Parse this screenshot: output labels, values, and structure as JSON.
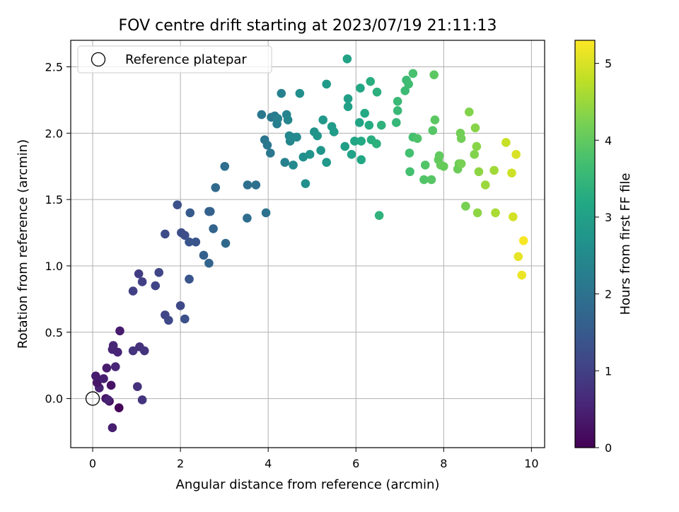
{
  "chart_data": {
    "type": "scatter",
    "title": "FOV centre drift starting at 2023/07/19 21:11:13",
    "xlabel": "Angular distance from reference (arcmin)",
    "ylabel": "Rotation from reference (arcmin)",
    "xlim": [
      -0.5,
      10.3
    ],
    "ylim": [
      -0.37,
      2.7
    ],
    "xticks": [
      "0",
      "2",
      "4",
      "6",
      "8",
      "10"
    ],
    "yticks": [
      "0.0",
      "0.5",
      "1.0",
      "1.5",
      "2.0",
      "2.5"
    ],
    "grid": true,
    "legend": {
      "position": "top-left",
      "label": "Reference platepar"
    },
    "reference_point": {
      "x": 0,
      "y": 0
    },
    "colorbar": {
      "label": "Hours from first FF file",
      "range": [
        0,
        5.3
      ],
      "ticks": [
        "0",
        "1",
        "2",
        "3",
        "4",
        "5"
      ],
      "colormap": "viridis"
    },
    "points": [
      {
        "x": 0.6,
        "y": -0.07,
        "h": 0.05
      },
      {
        "x": 0.45,
        "y": -0.22,
        "h": 0.45
      },
      {
        "x": 0.38,
        "y": -0.02,
        "h": 0.2
      },
      {
        "x": 0.3,
        "y": 0.0,
        "h": 0.3
      },
      {
        "x": 0.35,
        "y": -0.01,
        "h": 0.5
      },
      {
        "x": 0.15,
        "y": 0.08,
        "h": 0.5
      },
      {
        "x": 0.1,
        "y": 0.12,
        "h": 0.3
      },
      {
        "x": 0.07,
        "y": 0.17,
        "h": 0.4
      },
      {
        "x": 0.25,
        "y": 0.15,
        "h": 0.45
      },
      {
        "x": 0.42,
        "y": 0.1,
        "h": 0.25
      },
      {
        "x": 0.32,
        "y": 0.23,
        "h": 0.4
      },
      {
        "x": 0.52,
        "y": 0.24,
        "h": 0.55
      },
      {
        "x": 0.45,
        "y": 0.37,
        "h": 0.55
      },
      {
        "x": 0.47,
        "y": 0.4,
        "h": 0.6
      },
      {
        "x": 0.57,
        "y": 0.35,
        "h": 0.55
      },
      {
        "x": 0.62,
        "y": 0.51,
        "h": 0.4
      },
      {
        "x": 0.92,
        "y": 0.36,
        "h": 0.8
      },
      {
        "x": 1.07,
        "y": 0.39,
        "h": 0.75
      },
      {
        "x": 1.18,
        "y": 0.36,
        "h": 0.8
      },
      {
        "x": 1.02,
        "y": 0.09,
        "h": 0.75
      },
      {
        "x": 1.13,
        "y": -0.01,
        "h": 0.8
      },
      {
        "x": 0.92,
        "y": 0.81,
        "h": 1.0
      },
      {
        "x": 1.05,
        "y": 0.94,
        "h": 0.95
      },
      {
        "x": 1.13,
        "y": 0.88,
        "h": 1.0
      },
      {
        "x": 1.43,
        "y": 0.85,
        "h": 1.05
      },
      {
        "x": 1.51,
        "y": 0.95,
        "h": 1.1
      },
      {
        "x": 1.65,
        "y": 0.63,
        "h": 1.1
      },
      {
        "x": 1.73,
        "y": 0.59,
        "h": 1.15
      },
      {
        "x": 2.0,
        "y": 0.7,
        "h": 1.15
      },
      {
        "x": 2.1,
        "y": 0.6,
        "h": 1.3
      },
      {
        "x": 2.2,
        "y": 0.9,
        "h": 1.4
      },
      {
        "x": 1.65,
        "y": 1.24,
        "h": 1.2
      },
      {
        "x": 2.02,
        "y": 1.25,
        "h": 1.25
      },
      {
        "x": 2.1,
        "y": 1.23,
        "h": 1.25
      },
      {
        "x": 2.2,
        "y": 1.18,
        "h": 1.4
      },
      {
        "x": 2.35,
        "y": 1.18,
        "h": 1.4
      },
      {
        "x": 1.93,
        "y": 1.46,
        "h": 1.3
      },
      {
        "x": 2.22,
        "y": 1.4,
        "h": 1.5
      },
      {
        "x": 2.53,
        "y": 1.08,
        "h": 1.6
      },
      {
        "x": 2.65,
        "y": 1.41,
        "h": 1.6
      },
      {
        "x": 2.68,
        "y": 1.41,
        "h": 1.65
      },
      {
        "x": 2.75,
        "y": 1.28,
        "h": 1.7
      },
      {
        "x": 2.65,
        "y": 1.02,
        "h": 1.7
      },
      {
        "x": 2.8,
        "y": 1.59,
        "h": 1.8
      },
      {
        "x": 3.03,
        "y": 1.17,
        "h": 1.8
      },
      {
        "x": 3.01,
        "y": 1.75,
        "h": 1.9
      },
      {
        "x": 3.52,
        "y": 1.36,
        "h": 1.9
      },
      {
        "x": 3.53,
        "y": 1.61,
        "h": 1.95
      },
      {
        "x": 3.72,
        "y": 1.61,
        "h": 1.95
      },
      {
        "x": 3.95,
        "y": 1.4,
        "h": 2.0
      },
      {
        "x": 3.92,
        "y": 1.95,
        "h": 2.05
      },
      {
        "x": 3.85,
        "y": 2.14,
        "h": 2.1
      },
      {
        "x": 3.98,
        "y": 1.91,
        "h": 2.1
      },
      {
        "x": 4.05,
        "y": 1.85,
        "h": 2.1
      },
      {
        "x": 4.07,
        "y": 2.12,
        "h": 2.15
      },
      {
        "x": 4.15,
        "y": 2.13,
        "h": 2.2
      },
      {
        "x": 4.2,
        "y": 2.07,
        "h": 2.25
      },
      {
        "x": 4.22,
        "y": 2.11,
        "h": 2.3
      },
      {
        "x": 4.3,
        "y": 2.3,
        "h": 2.3
      },
      {
        "x": 4.38,
        "y": 1.78,
        "h": 2.3
      },
      {
        "x": 4.42,
        "y": 2.14,
        "h": 2.35
      },
      {
        "x": 4.48,
        "y": 1.98,
        "h": 2.4
      },
      {
        "x": 4.5,
        "y": 1.94,
        "h": 2.4
      },
      {
        "x": 4.45,
        "y": 2.1,
        "h": 2.4
      },
      {
        "x": 4.53,
        "y": 1.97,
        "h": 2.5
      },
      {
        "x": 4.57,
        "y": 1.76,
        "h": 2.5
      },
      {
        "x": 4.65,
        "y": 1.97,
        "h": 2.5
      },
      {
        "x": 4.72,
        "y": 2.3,
        "h": 2.6
      },
      {
        "x": 4.8,
        "y": 1.82,
        "h": 2.6
      },
      {
        "x": 4.85,
        "y": 1.62,
        "h": 2.6
      },
      {
        "x": 4.95,
        "y": 1.84,
        "h": 2.7
      },
      {
        "x": 5.05,
        "y": 2.01,
        "h": 2.7
      },
      {
        "x": 5.12,
        "y": 1.98,
        "h": 2.75
      },
      {
        "x": 5.2,
        "y": 1.87,
        "h": 2.75
      },
      {
        "x": 5.25,
        "y": 2.1,
        "h": 2.8
      },
      {
        "x": 5.33,
        "y": 1.78,
        "h": 2.8
      },
      {
        "x": 5.33,
        "y": 2.37,
        "h": 2.85
      },
      {
        "x": 5.45,
        "y": 2.05,
        "h": 2.9
      },
      {
        "x": 5.5,
        "y": 2.01,
        "h": 2.9
      },
      {
        "x": 5.75,
        "y": 1.9,
        "h": 2.95
      },
      {
        "x": 5.8,
        "y": 2.56,
        "h": 3.05
      },
      {
        "x": 5.82,
        "y": 2.26,
        "h": 3.0
      },
      {
        "x": 5.82,
        "y": 2.2,
        "h": 3.0
      },
      {
        "x": 5.9,
        "y": 1.84,
        "h": 3.05
      },
      {
        "x": 5.97,
        "y": 1.94,
        "h": 3.1
      },
      {
        "x": 6.08,
        "y": 2.08,
        "h": 3.1
      },
      {
        "x": 6.1,
        "y": 2.34,
        "h": 3.15
      },
      {
        "x": 6.12,
        "y": 1.8,
        "h": 3.15
      },
      {
        "x": 6.12,
        "y": 1.94,
        "h": 3.2
      },
      {
        "x": 6.2,
        "y": 2.15,
        "h": 3.2
      },
      {
        "x": 6.3,
        "y": 2.06,
        "h": 3.25
      },
      {
        "x": 6.33,
        "y": 2.39,
        "h": 3.3
      },
      {
        "x": 6.35,
        "y": 1.95,
        "h": 3.3
      },
      {
        "x": 6.47,
        "y": 1.92,
        "h": 3.35
      },
      {
        "x": 6.48,
        "y": 2.31,
        "h": 3.35
      },
      {
        "x": 6.53,
        "y": 1.38,
        "h": 3.4
      },
      {
        "x": 6.58,
        "y": 2.06,
        "h": 3.4
      },
      {
        "x": 6.92,
        "y": 2.08,
        "h": 3.5
      },
      {
        "x": 6.95,
        "y": 2.17,
        "h": 3.55
      },
      {
        "x": 6.95,
        "y": 2.24,
        "h": 3.55
      },
      {
        "x": 7.12,
        "y": 2.32,
        "h": 3.6
      },
      {
        "x": 7.15,
        "y": 2.4,
        "h": 3.6
      },
      {
        "x": 7.2,
        "y": 2.37,
        "h": 3.65
      },
      {
        "x": 7.22,
        "y": 1.85,
        "h": 3.7
      },
      {
        "x": 7.23,
        "y": 1.71,
        "h": 3.7
      },
      {
        "x": 7.3,
        "y": 1.97,
        "h": 3.7
      },
      {
        "x": 7.3,
        "y": 2.45,
        "h": 3.75
      },
      {
        "x": 7.4,
        "y": 1.96,
        "h": 3.8
      },
      {
        "x": 7.55,
        "y": 1.65,
        "h": 3.85
      },
      {
        "x": 7.58,
        "y": 1.76,
        "h": 3.85
      },
      {
        "x": 7.72,
        "y": 1.65,
        "h": 3.9
      },
      {
        "x": 7.75,
        "y": 2.02,
        "h": 3.9
      },
      {
        "x": 7.78,
        "y": 2.44,
        "h": 3.95
      },
      {
        "x": 7.8,
        "y": 2.1,
        "h": 3.95
      },
      {
        "x": 7.88,
        "y": 1.8,
        "h": 4.0
      },
      {
        "x": 7.9,
        "y": 1.83,
        "h": 4.0
      },
      {
        "x": 7.93,
        "y": 1.76,
        "h": 4.05
      },
      {
        "x": 8.0,
        "y": 1.75,
        "h": 4.05
      },
      {
        "x": 8.32,
        "y": 1.73,
        "h": 4.1
      },
      {
        "x": 8.35,
        "y": 1.77,
        "h": 4.1
      },
      {
        "x": 8.38,
        "y": 2.0,
        "h": 4.15
      },
      {
        "x": 8.4,
        "y": 1.96,
        "h": 4.15
      },
      {
        "x": 8.4,
        "y": 1.77,
        "h": 4.2
      },
      {
        "x": 8.5,
        "y": 1.45,
        "h": 4.2
      },
      {
        "x": 8.58,
        "y": 2.16,
        "h": 4.3
      },
      {
        "x": 8.7,
        "y": 1.84,
        "h": 4.3
      },
      {
        "x": 8.72,
        "y": 2.04,
        "h": 4.35
      },
      {
        "x": 8.75,
        "y": 1.9,
        "h": 4.35
      },
      {
        "x": 8.77,
        "y": 1.4,
        "h": 4.4
      },
      {
        "x": 8.8,
        "y": 1.71,
        "h": 4.4
      },
      {
        "x": 8.95,
        "y": 1.61,
        "h": 4.5
      },
      {
        "x": 9.15,
        "y": 1.72,
        "h": 4.55
      },
      {
        "x": 9.18,
        "y": 1.4,
        "h": 4.6
      },
      {
        "x": 9.42,
        "y": 1.93,
        "h": 4.85
      },
      {
        "x": 9.55,
        "y": 1.7,
        "h": 4.9
      },
      {
        "x": 9.58,
        "y": 1.37,
        "h": 4.95
      },
      {
        "x": 9.65,
        "y": 1.84,
        "h": 5.0
      },
      {
        "x": 9.7,
        "y": 1.07,
        "h": 5.1
      },
      {
        "x": 9.78,
        "y": 0.93,
        "h": 5.15
      },
      {
        "x": 9.82,
        "y": 1.19,
        "h": 5.25
      }
    ]
  }
}
